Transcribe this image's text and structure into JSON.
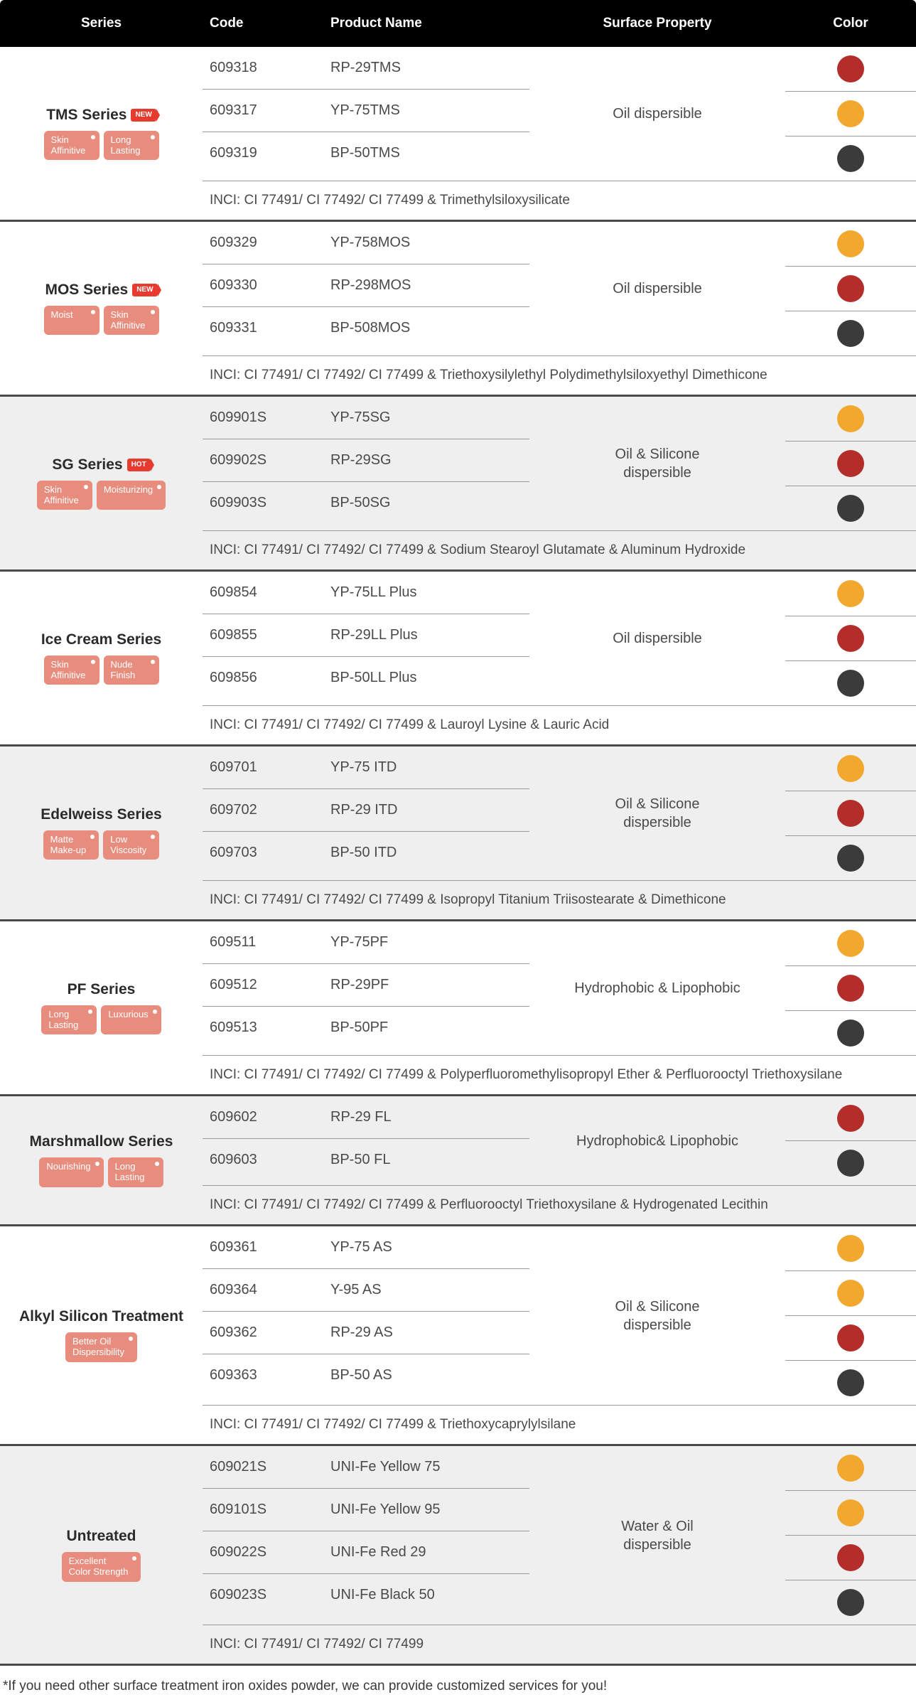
{
  "colors": {
    "header_bg": "#000000",
    "header_text": "#ffffff",
    "row_alt_bg": "#efefef",
    "divider": "#9a9a9a",
    "block_divider": "#4a4a4a",
    "tag_bg": "#e88d7e",
    "flag_bg": "#e63b2e",
    "swatch_yellow": "#f2a72e",
    "swatch_red": "#b32d2a",
    "swatch_black": "#3b3b3b"
  },
  "headers": {
    "series": "Series",
    "code": "Code",
    "product": "Product Name",
    "surface": "Surface Property",
    "color": "Color"
  },
  "footnote": "*If you need other surface treatment iron oxides powder, we can provide customized services for you!",
  "groups": [
    {
      "title": "TMS Series",
      "flag": "NEW",
      "alt": false,
      "tags": [
        "Skin\nAffinitive",
        "Long\nLasting"
      ],
      "surface": "Oil dispersible",
      "inci": "INCI:  CI 77491/ CI 77492/ CI 77499 & Trimethylsiloxysilicate",
      "rows": [
        {
          "code": "609318",
          "product": "RP-29TMS",
          "color": "#b32d2a"
        },
        {
          "code": "609317",
          "product": "YP-75TMS",
          "color": "#f2a72e"
        },
        {
          "code": "609319",
          "product": "BP-50TMS",
          "color": "#3b3b3b"
        }
      ]
    },
    {
      "title": "MOS Series",
      "flag": "NEW",
      "alt": false,
      "tags": [
        "Moist",
        "Skin\nAffinitive"
      ],
      "surface": "Oil dispersible",
      "inci": "INCI: CI 77491/ CI 77492/ CI 77499 & Triethoxysilylethyl Polydimethylsiloxyethyl Dimethicone",
      "rows": [
        {
          "code": "609329",
          "product": "YP-758MOS",
          "color": "#f2a72e"
        },
        {
          "code": "609330",
          "product": "RP-298MOS",
          "color": "#b32d2a"
        },
        {
          "code": "609331",
          "product": "BP-508MOS",
          "color": "#3b3b3b"
        }
      ]
    },
    {
      "title": "SG Series",
      "flag": "HOT",
      "alt": true,
      "tags": [
        "Skin\nAffinitive",
        "Moisturizing"
      ],
      "surface": "Oil & Silicone\ndispersible",
      "inci": "INCI: CI 77491/ CI 77492/ CI 77499 & Sodium Stearoyl Glutamate & Aluminum Hydroxide",
      "rows": [
        {
          "code": "609901S",
          "product": "YP-75SG",
          "color": "#f2a72e"
        },
        {
          "code": "609902S",
          "product": "RP-29SG",
          "color": "#b32d2a"
        },
        {
          "code": "609903S",
          "product": "BP-50SG",
          "color": "#3b3b3b"
        }
      ]
    },
    {
      "title": "Ice Cream Series",
      "flag": null,
      "alt": false,
      "tags": [
        "Skin\nAffinitive",
        "Nude\nFinish"
      ],
      "surface": "Oil dispersible",
      "inci": "INCI: CI 77491/ CI 77492/ CI 77499 & Lauroyl Lysine & Lauric Acid",
      "rows": [
        {
          "code": "609854",
          "product": "YP-75LL Plus",
          "color": "#f2a72e"
        },
        {
          "code": "609855",
          "product": "RP-29LL Plus",
          "color": "#b32d2a"
        },
        {
          "code": "609856",
          "product": "BP-50LL Plus",
          "color": "#3b3b3b"
        }
      ]
    },
    {
      "title": "Edelweiss Series",
      "flag": null,
      "alt": true,
      "tags": [
        "Matte\nMake-up",
        "Low\nViscosity"
      ],
      "surface": "Oil & Silicone\ndispersible",
      "inci": "INCI: CI 77491/ CI 77492/ CI 77499 & Isopropyl Titanium Triisostearate & Dimethicone",
      "rows": [
        {
          "code": "609701",
          "product": "YP-75 ITD",
          "color": "#f2a72e"
        },
        {
          "code": "609702",
          "product": "RP-29 ITD",
          "color": "#b32d2a"
        },
        {
          "code": "609703",
          "product": "BP-50 ITD",
          "color": "#3b3b3b"
        }
      ]
    },
    {
      "title": "PF Series",
      "flag": null,
      "alt": false,
      "tags": [
        "Long\nLasting",
        "Luxurious"
      ],
      "surface": "Hydrophobic & Lipophobic",
      "inci": "INCI: CI 77491/ CI 77492/ CI 77499 & Polyperfluoromethylisopropyl Ether & Perfluorooctyl Triethoxysilane",
      "rows": [
        {
          "code": "609511",
          "product": "YP-75PF",
          "color": "#f2a72e"
        },
        {
          "code": "609512",
          "product": "RP-29PF",
          "color": "#b32d2a"
        },
        {
          "code": "609513",
          "product": "BP-50PF",
          "color": "#3b3b3b"
        }
      ]
    },
    {
      "title": "Marshmallow Series",
      "flag": null,
      "alt": true,
      "tags": [
        "Nourishing",
        "Long\nLasting"
      ],
      "surface": "Hydrophobic& Lipophobic",
      "inci": "INCI: CI 77491/ CI 77492/ CI 77499 & Perfluorooctyl Triethoxysilane & Hydrogenated Lecithin",
      "rows": [
        {
          "code": "609602",
          "product": "RP-29 FL",
          "color": "#b32d2a"
        },
        {
          "code": "609603",
          "product": "BP-50 FL",
          "color": "#3b3b3b"
        }
      ]
    },
    {
      "title": "Alkyl Silicon Treatment",
      "flag": null,
      "alt": false,
      "tags": [
        "Better Oil\nDispersibility"
      ],
      "surface": "Oil & Silicone\ndispersible",
      "inci": "INCI: CI 77491/ CI 77492/ CI 77499 & Triethoxycaprylylsilane",
      "rows": [
        {
          "code": "609361",
          "product": "YP-75 AS",
          "color": "#f2a72e"
        },
        {
          "code": "609364",
          "product": "Y-95 AS",
          "color": "#f2a72e"
        },
        {
          "code": "609362",
          "product": "RP-29 AS",
          "color": "#b32d2a"
        },
        {
          "code": "609363",
          "product": "BP-50 AS",
          "color": "#3b3b3b"
        }
      ]
    },
    {
      "title": "Untreated",
      "flag": null,
      "alt": true,
      "tags": [
        "Excellent\nColor Strength"
      ],
      "surface": "Water & Oil\ndispersible",
      "inci": "INCI: CI 77491/ CI 77492/ CI 77499",
      "rows": [
        {
          "code": "609021S",
          "product": "UNI-Fe Yellow 75",
          "color": "#f2a72e"
        },
        {
          "code": "609101S",
          "product": "UNI-Fe Yellow 95",
          "color": "#f2a72e"
        },
        {
          "code": "609022S",
          "product": "UNI-Fe Red 29",
          "color": "#b32d2a"
        },
        {
          "code": "609023S",
          "product": "UNI-Fe Black 50",
          "color": "#3b3b3b"
        }
      ]
    }
  ]
}
